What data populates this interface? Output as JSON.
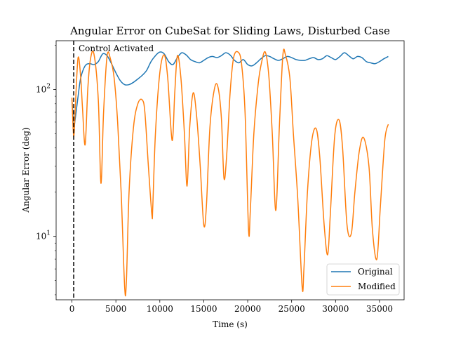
{
  "chart_data": {
    "type": "line",
    "title": "Angular Error on CubeSat for Sliding Laws, Disturbed Case",
    "xlabel": "Time (s)",
    "ylabel": "Angular Error (deg)",
    "xlim": [
      -1800,
      37800
    ],
    "ylim": [
      3.7,
      215
    ],
    "yscale": "log",
    "xticks": [
      0,
      5000,
      10000,
      15000,
      20000,
      25000,
      30000,
      35000
    ],
    "xtick_labels": [
      "0",
      "5000",
      "10000",
      "15000",
      "20000",
      "25000",
      "30000",
      "35000"
    ],
    "yticks": [
      10,
      100
    ],
    "ytick_labels": [
      "10^1",
      "10^2"
    ],
    "grid": false,
    "legend": "lower-right",
    "annotation": {
      "text": "Control Activated",
      "x": 200
    },
    "colors": {
      "Original": "#1f77b4",
      "Modified": "#ff7f0e",
      "vline": "#000000"
    },
    "series": [
      {
        "name": "Original",
        "x": [
          0,
          100,
          200,
          400,
          700,
          1000,
          1500,
          2000,
          2500,
          3000,
          3500,
          4000,
          4500,
          5000,
          5500,
          6000,
          6500,
          7000,
          7500,
          8000,
          8500,
          9000,
          9500,
          10000,
          10500,
          11000,
          11500,
          12000,
          12500,
          13000,
          13500,
          14000,
          14500,
          15000,
          15500,
          16000,
          16500,
          17000,
          17500,
          18000,
          18500,
          19000,
          19500,
          20000,
          20500,
          21000,
          21500,
          22000,
          22500,
          23000,
          23500,
          24000,
          24500,
          25000,
          25500,
          26000,
          26500,
          27000,
          27500,
          28000,
          28500,
          29000,
          29500,
          30000,
          30500,
          31000,
          31500,
          32000,
          32500,
          33000,
          33500,
          34000,
          34500,
          35000,
          35500,
          36000
        ],
        "values": [
          85,
          70,
          55,
          65,
          90,
          120,
          145,
          150,
          148,
          155,
          175,
          170,
          150,
          130,
          115,
          108,
          108,
          112,
          118,
          125,
          135,
          155,
          170,
          180,
          175,
          155,
          148,
          165,
          178,
          172,
          160,
          155,
          152,
          158,
          165,
          168,
          165,
          170,
          178,
          172,
          158,
          152,
          160,
          148,
          145,
          152,
          162,
          170,
          168,
          162,
          158,
          162,
          168,
          165,
          160,
          158,
          158,
          162,
          165,
          160,
          162,
          170,
          165,
          160,
          168,
          178,
          170,
          162,
          168,
          165,
          155,
          152,
          150,
          155,
          162,
          168
        ]
      },
      {
        "name": "Modified",
        "x": [
          0,
          200,
          400,
          700,
          1000,
          1200,
          1500,
          1800,
          2100,
          2500,
          3000,
          3300,
          3600,
          4000,
          4400,
          4800,
          5200,
          5600,
          6000,
          6200,
          6500,
          7000,
          7500,
          8000,
          8300,
          8700,
          9100,
          9200,
          9500,
          10000,
          10500,
          10900,
          11400,
          11700,
          12000,
          12400,
          12800,
          13100,
          13400,
          13800,
          14200,
          14600,
          15000,
          15300,
          15700,
          16200,
          16600,
          17000,
          17300,
          17600,
          18000,
          18400,
          18900,
          19300,
          19700,
          20100,
          20300,
          20700,
          21200,
          21600,
          22000,
          22400,
          22800,
          23200,
          23600,
          24000,
          24300,
          24800,
          25200,
          25700,
          26200,
          26400,
          26800,
          27300,
          27800,
          28200,
          28700,
          29100,
          29400,
          29900,
          30400,
          30800,
          31300,
          31800,
          32200,
          32700,
          33200,
          33800,
          34200,
          34700,
          35100,
          35600,
          36000
        ],
        "values": [
          88,
          48,
          80,
          165,
          120,
          75,
          42,
          100,
          160,
          175,
          85,
          23,
          70,
          170,
          160,
          120,
          60,
          20,
          4.5,
          5,
          20,
          55,
          80,
          85,
          70,
          30,
          14,
          16,
          50,
          130,
          172,
          120,
          45,
          95,
          170,
          120,
          50,
          22,
          55,
          95,
          65,
          30,
          12,
          16,
          55,
          100,
          105,
          65,
          25,
          35,
          95,
          165,
          180,
          150,
          70,
          11,
          15,
          50,
          110,
          155,
          180,
          125,
          50,
          15,
          55,
          170,
          172,
          120,
          50,
          18,
          4.5,
          6,
          20,
          45,
          54,
          35,
          12,
          7.5,
          14,
          48,
          62,
          40,
          12,
          10.5,
          20,
          38,
          47,
          30,
          11,
          7,
          16,
          45,
          58
        ]
      }
    ]
  }
}
